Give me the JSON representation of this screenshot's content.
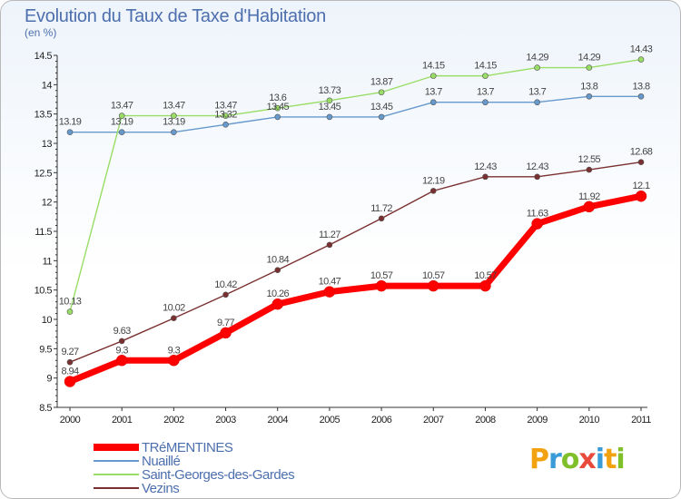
{
  "title": "Evolution du Taux de Taxe d'Habitation",
  "subtitle": "(en %)",
  "logo": {
    "text": "Proxiti",
    "letter_colors": [
      "#f2a10f",
      "#3a9bd9",
      "#7fbf2a",
      "#e84a3c",
      "#3a9bd9",
      "#f2a10f",
      "#7fbf2a"
    ]
  },
  "chart_data": {
    "type": "line",
    "x": [
      2000,
      2001,
      2002,
      2003,
      2004,
      2005,
      2006,
      2007,
      2008,
      2009,
      2010,
      2011
    ],
    "ylim": [
      8.5,
      14.5
    ],
    "yticks": [
      8.5,
      9,
      9.5,
      10,
      10.5,
      11,
      11.5,
      12,
      12.5,
      13,
      13.5,
      14,
      14.5
    ],
    "grid": false,
    "legend_position": "bottom-left",
    "series": [
      {
        "name": "TRéMENTINES",
        "color": "#ff0000",
        "thick": true,
        "values": [
          8.94,
          9.3,
          9.3,
          9.77,
          10.26,
          10.47,
          10.57,
          10.57,
          10.57,
          11.63,
          11.92,
          12.1
        ],
        "labels": [
          "8.94",
          "9.3",
          "9.3",
          "9.77",
          "10.26",
          "10.47",
          "10.57",
          "10.57",
          "10.57",
          "11.63",
          "11.92",
          "12.1"
        ]
      },
      {
        "name": "Nuaillé",
        "color": "#6699cc",
        "thick": false,
        "values": [
          13.19,
          13.19,
          13.19,
          13.32,
          13.45,
          13.45,
          13.45,
          13.7,
          13.7,
          13.7,
          13.8,
          13.8
        ],
        "labels": [
          "13.19",
          "13.19",
          "13.19",
          "13.32",
          "13.45",
          "13.45",
          "13.45",
          "13.7",
          "13.7",
          "13.7",
          "13.8",
          "13.8"
        ]
      },
      {
        "name": "Saint-Georges-des-Gardes",
        "color": "#99dd66",
        "thick": false,
        "values": [
          10.13,
          13.47,
          13.47,
          13.47,
          13.6,
          13.73,
          13.87,
          14.15,
          14.15,
          14.29,
          14.29,
          14.43
        ],
        "labels": [
          "10.13",
          "13.47",
          "13.47",
          "13.47",
          "13.6",
          "13.73",
          "13.87",
          "14.15",
          "14.15",
          "14.29",
          "14.29",
          "14.43"
        ]
      },
      {
        "name": "Vezins",
        "color": "#7a3030",
        "thick": false,
        "values": [
          9.27,
          9.63,
          10.02,
          10.42,
          10.84,
          11.27,
          11.72,
          12.19,
          12.43,
          12.43,
          12.55,
          12.68
        ],
        "labels": [
          "9.27",
          "9.63",
          "10.02",
          "10.42",
          "10.84",
          "11.27",
          "11.72",
          "12.19",
          "12.43",
          "12.43",
          "12.55",
          "12.68"
        ]
      }
    ]
  }
}
